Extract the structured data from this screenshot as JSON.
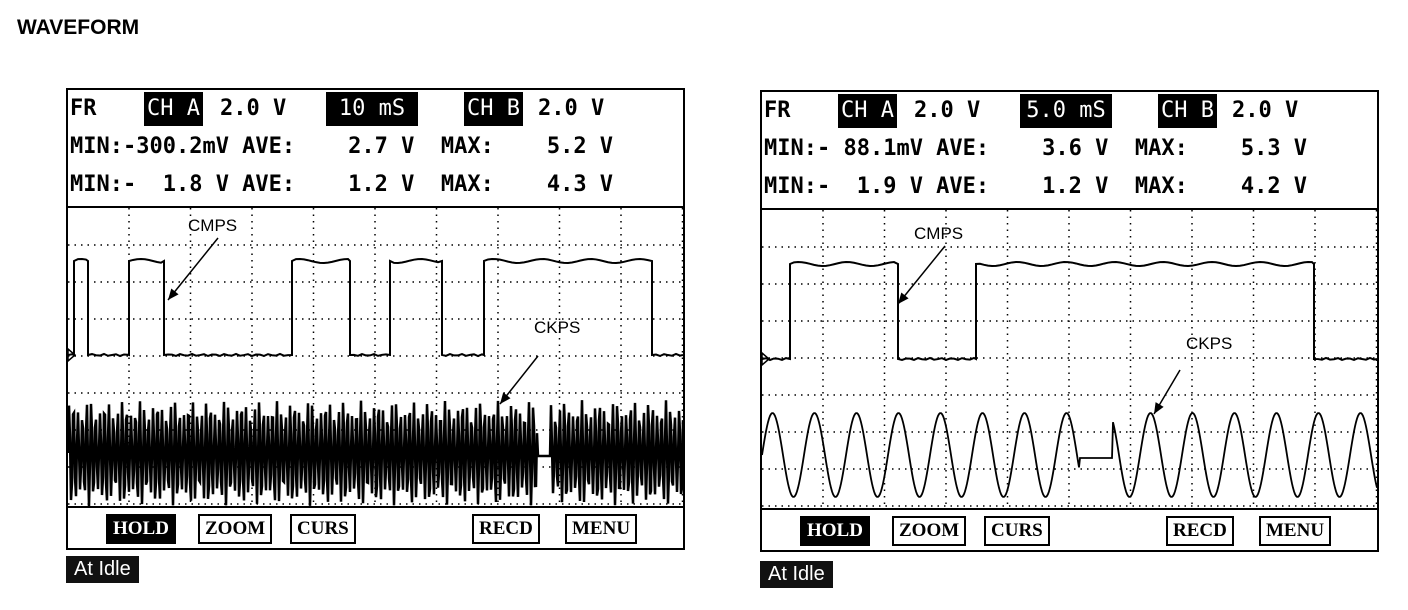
{
  "title": "WAVEFORM",
  "scopes": [
    {
      "fr": "FR",
      "cha": "CH A",
      "cha_scale": "2.0 V",
      "time": "10 mS",
      "chb": "CH B",
      "chb_scale": "2.0 V",
      "row_a": "MIN:-300.2mV AVE:    2.7 V  MAX:    5.2 V",
      "row_b": "MIN:-  1.8 V AVE:    1.2 V  MAX:    4.3 V",
      "signal_1": "CMPS",
      "signal_2": "CKPS",
      "buttons": [
        "HOLD",
        "ZOOM",
        "CURS",
        "RECD",
        "MENU"
      ],
      "caption": "At Idle"
    },
    {
      "fr": "FR",
      "cha": "CH A",
      "cha_scale": "2.0 V",
      "time": "5.0 mS",
      "chb": "CH B",
      "chb_scale": "2.0 V",
      "row_a": "MIN:- 88.1mV AVE:    3.6 V  MAX:    5.3 V",
      "row_b": "MIN:-  1.9 V AVE:    1.2 V  MAX:    4.2 V",
      "signal_1": "CMPS",
      "signal_2": "CKPS",
      "buttons": [
        "HOLD",
        "ZOOM",
        "CURS",
        "RECD",
        "MENU"
      ],
      "caption": "At Idle"
    }
  ]
}
